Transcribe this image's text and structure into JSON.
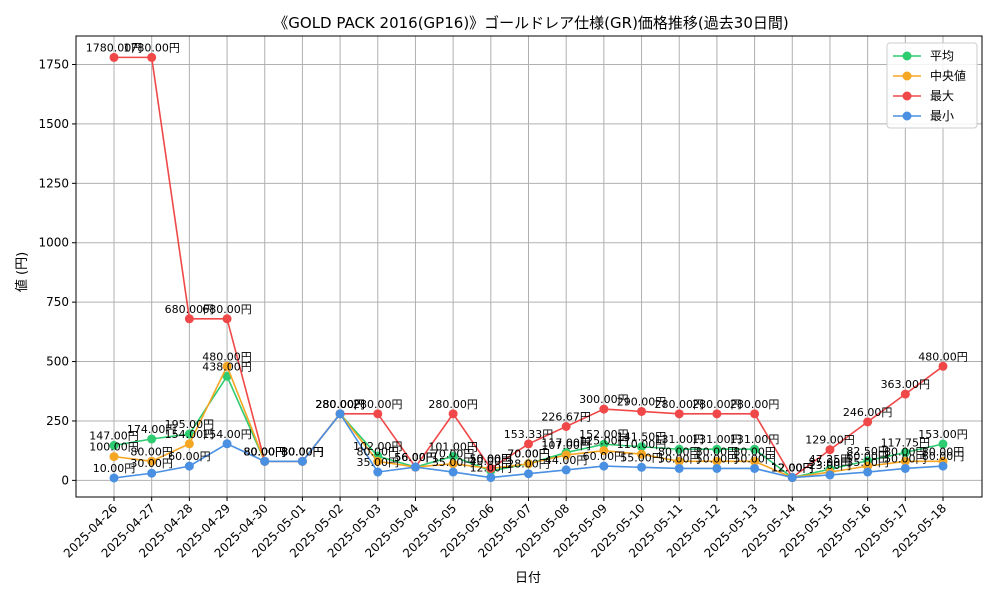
{
  "chart_data": {
    "type": "line",
    "title": "《GOLD PACK 2016(GP16)》ゴールドレア仕様(GR)価格推移(過去30日間)",
    "xlabel": "日付",
    "ylabel": "値 (円)",
    "ylim": [
      -70,
      1870
    ],
    "yticks": [
      0,
      250,
      500,
      750,
      1000,
      1250,
      1500,
      1750
    ],
    "grid": true,
    "legend_position": "top-right",
    "label_suffix": "円",
    "categories": [
      "2025-04-26",
      "2025-04-27",
      "2025-04-28",
      "2025-04-29",
      "2025-04-30",
      "2025-05-01",
      "2025-05-02",
      "2025-05-03",
      "2025-05-04",
      "2025-05-05",
      "2025-05-06",
      "2025-05-07",
      "2025-05-08",
      "2025-05-09",
      "2025-05-10",
      "2025-05-11",
      "2025-05-12",
      "2025-05-13",
      "2025-05-14",
      "2025-05-15",
      "2025-05-16",
      "2025-05-17",
      "2025-05-18"
    ],
    "series": [
      {
        "name": "平均",
        "color": "#2ecc71",
        "values": [
          147,
          174,
          195,
          438,
          80,
          80,
          280,
          102,
          56,
          101,
          40,
          70,
          117,
          152,
          141.5,
          131,
          131,
          131,
          12,
          47.25,
          82.5,
          117.75,
          153
        ]
      },
      {
        "name": "中央値",
        "color": "#f5a623",
        "values": [
          100,
          80,
          154,
          480,
          80,
          80,
          280,
          80,
          56,
          70,
          50,
          70,
          107,
          125,
          110,
          80,
          80,
          80,
          12,
          35,
          60,
          80,
          80
        ]
      },
      {
        "name": "最大",
        "color": "#f04848",
        "values": [
          1780,
          1780,
          680,
          680,
          80,
          80,
          280,
          280,
          56,
          280,
          50,
          153.33,
          226.67,
          300,
          290,
          280,
          280,
          280,
          12,
          129,
          246,
          363,
          480
        ]
      },
      {
        "name": "最小",
        "color": "#4a90e2",
        "values": [
          10,
          30,
          60,
          154,
          80,
          80,
          280,
          35,
          56,
          35,
          12,
          28,
          44,
          60,
          55,
          50,
          50,
          50,
          12,
          23,
          35,
          50,
          60
        ]
      }
    ]
  }
}
